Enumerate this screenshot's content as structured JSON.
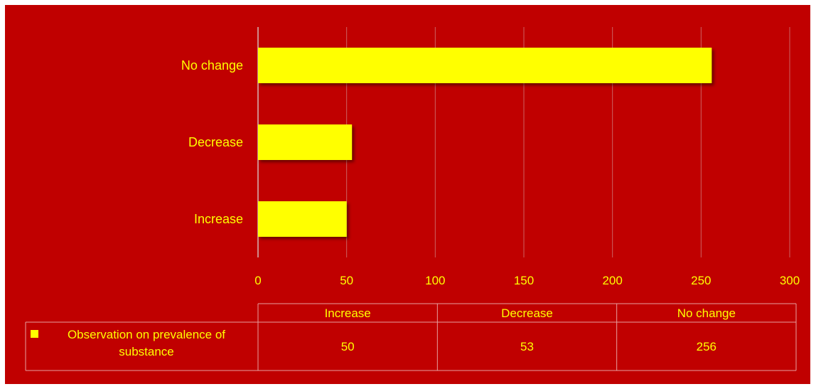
{
  "chart_data": {
    "type": "bar",
    "orientation": "horizontal",
    "categories": [
      "Increase",
      "Decrease",
      "No change"
    ],
    "series": [
      {
        "name": "Observation on prevalence of substance",
        "values": [
          50,
          53,
          256
        ]
      }
    ],
    "xlim": [
      0,
      300
    ],
    "xticks": [
      0,
      50,
      100,
      150,
      200,
      250,
      300
    ],
    "grid": true,
    "data_table": true,
    "colors": {
      "background": "#C00000",
      "bar": "#FFFF00",
      "text": "#FFFF00",
      "grid": "#D9D9D9"
    }
  }
}
